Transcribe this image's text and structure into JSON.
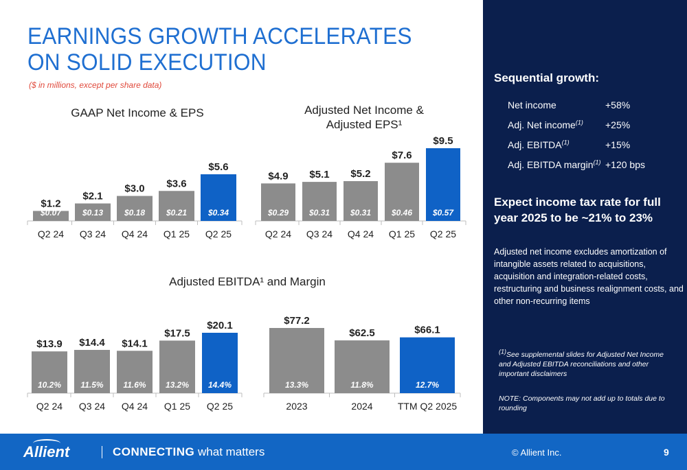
{
  "header": {
    "title": "EARNINGS GROWTH ACCELERATES ON SOLID EXECUTION",
    "subtitle": "($ in millions, except per share data)"
  },
  "chart_data": [
    {
      "type": "bar",
      "title": "GAAP Net Income & EPS",
      "categories": [
        "Q2 24",
        "Q3 24",
        "Q4 24",
        "Q1 25",
        "Q2 25"
      ],
      "values": [
        1.2,
        2.1,
        3.0,
        3.6,
        5.6
      ],
      "value_labels": [
        "$1.2",
        "$2.1",
        "$3.0",
        "$3.6",
        "$5.6"
      ],
      "inner_labels": [
        "$0.07",
        "$0.13",
        "$0.18",
        "$0.21",
        "$0.34"
      ],
      "highlight_index": 4,
      "ylim": [
        0,
        5.6
      ]
    },
    {
      "type": "bar",
      "title": "Adjusted Net Income & Adjusted EPS¹",
      "categories": [
        "Q2 24",
        "Q3 24",
        "Q4 24",
        "Q1 25",
        "Q2 25"
      ],
      "values": [
        4.9,
        5.1,
        5.2,
        7.6,
        9.5
      ],
      "value_labels": [
        "$4.9",
        "$5.1",
        "$5.2",
        "$7.6",
        "$9.5"
      ],
      "inner_labels": [
        "$0.29",
        "$0.31",
        "$0.31",
        "$0.46",
        "$0.57"
      ],
      "highlight_index": 4,
      "ylim": [
        0,
        9.5
      ]
    },
    {
      "type": "bar",
      "title": "Adjusted EBITDA¹ and Margin",
      "categories": [
        "Q2 24",
        "Q3 24",
        "Q4 24",
        "Q1 25",
        "Q2 25"
      ],
      "values": [
        13.9,
        14.4,
        14.1,
        17.5,
        20.1
      ],
      "value_labels": [
        "$13.9",
        "$14.4",
        "$14.1",
        "$17.5",
        "$20.1"
      ],
      "inner_labels": [
        "10.2%",
        "11.5%",
        "11.6%",
        "13.2%",
        "14.4%"
      ],
      "highlight_index": 4,
      "ylim": [
        0,
        20.1
      ]
    },
    {
      "type": "bar",
      "title": "",
      "categories": [
        "2023",
        "2024",
        "TTM Q2 2025"
      ],
      "values": [
        77.2,
        62.5,
        66.1
      ],
      "value_labels": [
        "$77.2",
        "$62.5",
        "$66.1"
      ],
      "inner_labels": [
        "13.3%",
        "11.8%",
        "12.7%"
      ],
      "highlight_index": 2,
      "ylim": [
        0,
        77.2
      ]
    }
  ],
  "sidebar": {
    "growth_heading": "Sequential growth:",
    "growth_rows": [
      {
        "label": "Net income",
        "sup": "",
        "value": "+58%"
      },
      {
        "label": "Adj. Net income",
        "sup": "(1)",
        "value": "+25%"
      },
      {
        "label": "Adj. EBITDA",
        "sup": "(1)",
        "value": "+15%"
      },
      {
        "label": "Adj. EBITDA margin",
        "sup": "(1)",
        "value": "+120 bps"
      }
    ],
    "tax_heading": "Expect income tax rate for full year 2025 to be ~21% to 23%",
    "adj_note": "Adjusted net income excludes amortization of intangible assets related to acquisitions, acquisition and integration-related costs, restructuring and business realignment costs, and other non-recurring items",
    "footnote_sup": "(1)",
    "footnote": "See supplemental slides for Adjusted Net Income and Adjusted EBITDA reconciliations and other important disclaimers",
    "note": "NOTE: Components may not add up to totals due to rounding"
  },
  "footer": {
    "logo": "Allient",
    "tagline_bold": "CONNECTING",
    "tagline_rest": " what matters",
    "copyright": "© Allient Inc.",
    "page_number": "9"
  },
  "colors": {
    "title": "#1f6fd1",
    "subtitle": "#e0493b",
    "bar_gray": "#8c8c8c",
    "bar_highlight": "#0f62c6",
    "sidebar_bg": "#0b1f4d",
    "footer_bg": "#1266c4"
  }
}
